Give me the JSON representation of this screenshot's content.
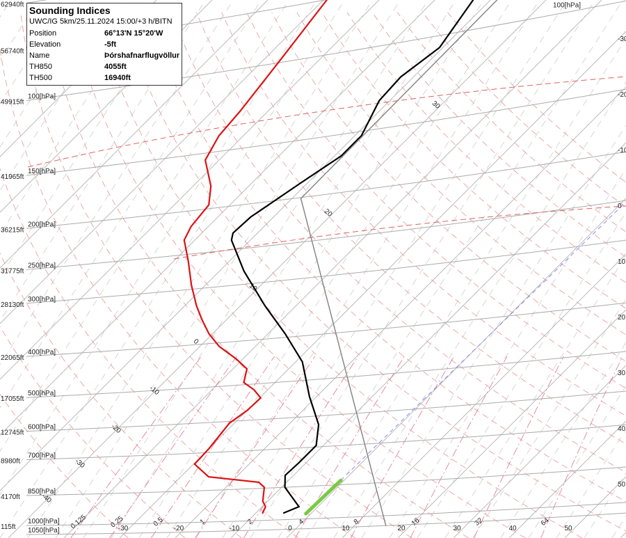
{
  "info": {
    "title": "Sounding Indices",
    "subtitle": "UWC/IG 5km/25.11.2024 15:00/+3 h/BITN",
    "rows": [
      [
        "Position",
        "66°13'N 15°20'W"
      ],
      [
        "Elevation",
        "-5ft"
      ],
      [
        "Name",
        "Þórshafnarflugvöllur"
      ],
      [
        "TH850",
        "4055ft"
      ],
      [
        "TH500",
        "16940ft"
      ]
    ]
  },
  "chart_data": {
    "type": "skew-t",
    "log_y": true,
    "ylim": [
      1070,
      58
    ],
    "yticks": [
      {
        "value": 59,
        "altitude": "62940ft"
      },
      {
        "value": 76,
        "altitude": "56740ft"
      },
      {
        "value": 100,
        "label": "100[hPa]",
        "altitude": "49915ft"
      },
      {
        "value": 150,
        "label": "150[hPa]",
        "altitude": "41965ft"
      },
      {
        "value": 200,
        "label": "200[hPa]",
        "altitude": "36215ft"
      },
      {
        "value": 250,
        "label": "250[hPa]",
        "altitude": "31775ft"
      },
      {
        "value": 300,
        "label": "300[hPa]",
        "altitude": "28130ft"
      },
      {
        "value": 400,
        "label": "400[hPa]",
        "altitude": "22065ft"
      },
      {
        "value": 500,
        "label": "500[hPa]",
        "altitude": "17055ft"
      },
      {
        "value": 600,
        "label": "600[hPa]",
        "altitude": "12745ft"
      },
      {
        "value": 700,
        "label": "700[hPa]",
        "altitude": "8980ft"
      },
      {
        "value": 850,
        "label": "850[hPa]",
        "altitude": "4170ft"
      },
      {
        "value": 1000,
        "label": "1000[hPa]",
        "altitude": "115ft"
      },
      {
        "value": 1050,
        "label": "1050[hPa]"
      }
    ],
    "right_labels": [
      {
        "value": 100,
        "label": "100[hPa]"
      }
    ],
    "xticks": [
      -30,
      -20,
      -10,
      0,
      10,
      20,
      30,
      40,
      50
    ],
    "adiabat_labels": [
      -40,
      -30,
      -20,
      -10,
      0,
      10,
      20,
      30
    ],
    "mixing_ratio_labels": [
      0.125,
      0.25,
      0.5,
      1,
      2,
      4,
      8,
      16,
      32,
      64
    ],
    "series": [
      {
        "color": "#000000",
        "x": [
          934,
          903,
          813,
          762,
          712,
          648,
          579,
          497,
          412,
          354,
          304,
          252,
          213,
          205,
          188,
          157,
          135,
          121,
          100,
          88,
          75,
          58
        ],
        "values": [
          -5,
          -3.4,
          -9.4,
          -11.5,
          -11.3,
          -11.3,
          -14.6,
          -21.3,
          -28.8,
          -36.9,
          -45.6,
          -55.6,
          -63.4,
          -64.4,
          -64.1,
          -61.3,
          -58.8,
          -58.8,
          -61.9,
          -62.3,
          -60.6,
          -63.1
        ]
      },
      {
        "color": "#dd1111",
        "x": [
          934,
          903,
          876,
          813,
          791,
          768,
          717,
          660,
          574,
          537,
          501,
          479,
          461,
          428,
          405,
          379,
          354,
          328,
          304,
          272,
          238,
          213,
          198,
          176,
          159,
          138,
          121,
          106,
          81,
          58
        ],
        "values": [
          -8.8,
          -9.4,
          -10.9,
          -13.1,
          -15,
          -25,
          -29.8,
          -30,
          -30.9,
          -30,
          -29.8,
          -32.5,
          -35.6,
          -37.5,
          -41.3,
          -46.5,
          -50.6,
          -54.4,
          -57.9,
          -62.5,
          -67.5,
          -71.9,
          -73.1,
          -73.8,
          -76.8,
          -82.5,
          -84.4,
          -85,
          -86.9,
          -89.4
        ]
      },
      {
        "color": "#888888",
        "x": [
          1000,
          170,
          58
        ],
        "values": [
          15.6,
          -58.4,
          -58.8
        ]
      },
      {
        "color": "#7ac943",
        "x": [
          938,
          783
        ],
        "values": [
          -0.9,
          -0.6
        ]
      }
    ]
  }
}
